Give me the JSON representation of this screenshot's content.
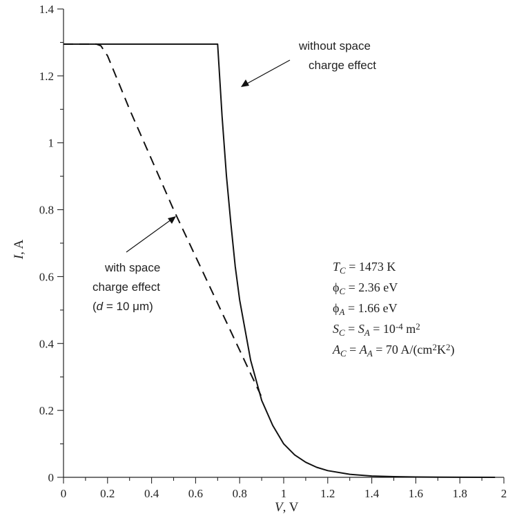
{
  "chart_data": {
    "type": "line",
    "xlabel": {
      "var": "V",
      "unit": ", V"
    },
    "ylabel": {
      "var": "I",
      "unit": ", A"
    },
    "xlim": [
      0,
      2
    ],
    "ylim": [
      0,
      1.4
    ],
    "xticks": [
      "0",
      "0.2",
      "0.4",
      "0.6",
      "0.8",
      "1",
      "1.2",
      "1.4",
      "1.6",
      "1.8",
      "2"
    ],
    "yticks": [
      "0",
      "0.2",
      "0.4",
      "0.6",
      "0.8",
      "1",
      "1.2",
      "1.4"
    ],
    "grid": false,
    "series": [
      {
        "style": "solid",
        "color": "#111111",
        "x": [
          0,
          0.1,
          0.2,
          0.3,
          0.4,
          0.5,
          0.6,
          0.7,
          0.72,
          0.74,
          0.76,
          0.78,
          0.8,
          0.85,
          0.9,
          0.95,
          1.0,
          1.05,
          1.1,
          1.15,
          1.2,
          1.3,
          1.4,
          1.5,
          1.6,
          1.8,
          1.96
        ],
        "y": [
          1.295,
          1.295,
          1.295,
          1.295,
          1.295,
          1.295,
          1.295,
          1.295,
          1.08,
          0.9,
          0.76,
          0.63,
          0.53,
          0.35,
          0.23,
          0.155,
          0.1,
          0.067,
          0.045,
          0.03,
          0.02,
          0.009,
          0.004,
          0.002,
          0.001,
          0.0003,
          0.0001
        ]
      },
      {
        "style": "dashed",
        "color": "#111111",
        "x": [
          0,
          0.1,
          0.15,
          0.17,
          0.2,
          0.25,
          0.3,
          0.4,
          0.5,
          0.6,
          0.7,
          0.8,
          0.85,
          0.9
        ],
        "y": [
          1.295,
          1.295,
          1.295,
          1.29,
          1.26,
          1.18,
          1.1,
          0.95,
          0.8,
          0.66,
          0.52,
          0.38,
          0.31,
          0.24
        ]
      }
    ],
    "annotations": {
      "without": [
        "without space",
        "charge effect"
      ],
      "with": [
        "with space",
        "charge effect"
      ],
      "with_d": {
        "open": "(",
        "var": "d",
        "rest": " = 10 μm)"
      }
    },
    "parameters": [
      {
        "parts": [
          {
            "t": "T",
            "i": true
          },
          {
            "t": "C",
            "i": true,
            "sub": true
          },
          {
            "t": " = 1473 K"
          }
        ]
      },
      {
        "parts": [
          {
            "t": "ϕ"
          },
          {
            "t": "C",
            "i": true,
            "sub": true
          },
          {
            "t": " = 2.36 eV"
          }
        ]
      },
      {
        "parts": [
          {
            "t": "ϕ"
          },
          {
            "t": "A",
            "i": true,
            "sub": true
          },
          {
            "t": " = 1.66 eV"
          }
        ]
      },
      {
        "parts": [
          {
            "t": "S",
            "i": true
          },
          {
            "t": "C",
            "i": true,
            "sub": true
          },
          {
            "t": " = "
          },
          {
            "t": "S",
            "i": true
          },
          {
            "t": "A",
            "i": true,
            "sub": true
          },
          {
            "t": " = 10"
          },
          {
            "t": "-4",
            "sup": true
          },
          {
            "t": " m"
          },
          {
            "t": "2",
            "sup": true
          }
        ]
      },
      {
        "parts": [
          {
            "t": "A",
            "i": true
          },
          {
            "t": "C",
            "i": true,
            "sub": true
          },
          {
            "t": " = "
          },
          {
            "t": "A",
            "i": true
          },
          {
            "t": "A",
            "i": true,
            "sub": true
          },
          {
            "t": " = 70 A/(cm"
          },
          {
            "t": "2",
            "sup": true
          },
          {
            "t": "K"
          },
          {
            "t": "2",
            "sup": true
          },
          {
            "t": ")"
          }
        ]
      }
    ]
  }
}
